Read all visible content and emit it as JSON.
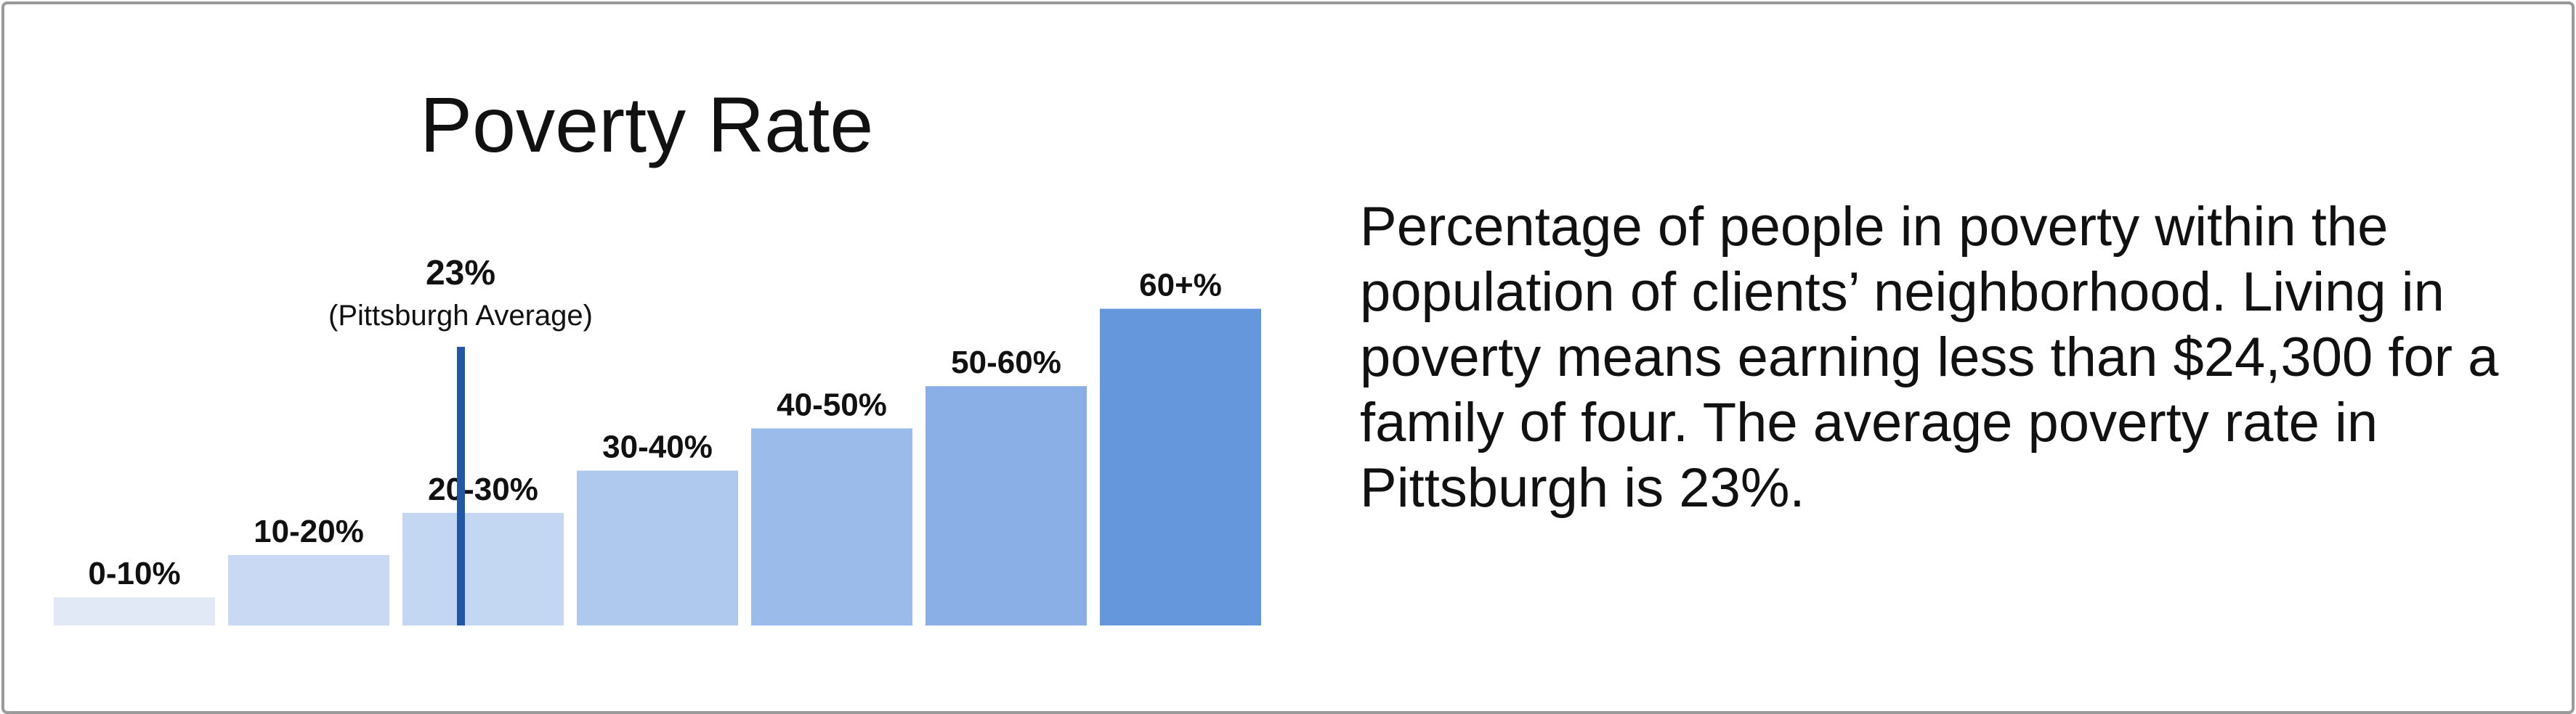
{
  "chart_data": {
    "type": "bar",
    "title": "Poverty Rate",
    "categories": [
      "0-10%",
      "10-20%",
      "20-30%",
      "30-40%",
      "40-50%",
      "50-60%",
      "60+%"
    ],
    "values": [
      4,
      10,
      16,
      22,
      28,
      34,
      45
    ],
    "colors": [
      "#e1e9f7",
      "#c9d9f3",
      "#c3d6f2",
      "#afc9ee",
      "#9bbbea",
      "#89afe6",
      "#6597dd"
    ],
    "reference_line": {
      "category": "20-30%",
      "value_label": "23%",
      "label": "(Pittsburgh Average)",
      "color": "#2456a6"
    },
    "grid": false,
    "axes_visible": false
  },
  "description": "Percentage of people in poverty within the population of clients’ neighborhood. Living in poverty means earning less than $24,300 for a family of four. The average poverty rate in Pittsburgh is 23%."
}
